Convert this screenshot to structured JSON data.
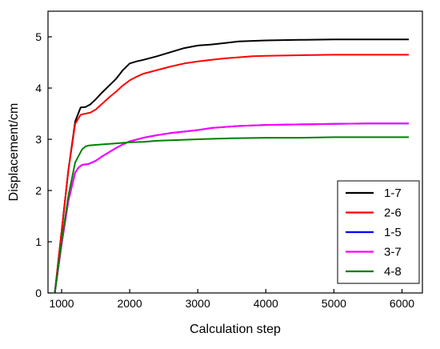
{
  "chart_data": {
    "type": "line",
    "xlabel": "Calculation step",
    "ylabel": "Displacement/cm",
    "xlim": [
      800,
      6300
    ],
    "ylim": [
      0,
      5.5
    ],
    "xticks": [
      1000,
      2000,
      3000,
      4000,
      5000,
      6000
    ],
    "xtick_labels": [
      "1000",
      "2000",
      "3000",
      "4000",
      "5000",
      "6000"
    ],
    "yticks": [
      0,
      1,
      2,
      3,
      4,
      5
    ],
    "ytick_labels": [
      "0",
      "1",
      "2",
      "3",
      "4",
      "5"
    ],
    "grid": false,
    "legend_position": "bottom-right",
    "series": [
      {
        "name": "1-7",
        "color": "#000000",
        "x": [
          900,
          1000,
          1100,
          1200,
          1280,
          1350,
          1420,
          1500,
          1600,
          1700,
          1800,
          1900,
          2000,
          2100,
          2200,
          2400,
          2600,
          2800,
          3000,
          3200,
          3400,
          3600,
          3800,
          4000,
          4500,
          5000,
          5500,
          6100
        ],
        "y": [
          0.0,
          1.2,
          2.4,
          3.35,
          3.62,
          3.63,
          3.68,
          3.78,
          3.92,
          4.05,
          4.18,
          4.35,
          4.48,
          4.52,
          4.55,
          4.62,
          4.7,
          4.78,
          4.83,
          4.85,
          4.88,
          4.91,
          4.92,
          4.93,
          4.94,
          4.95,
          4.95,
          4.95
        ]
      },
      {
        "name": "2-6",
        "color": "#ff0000",
        "x": [
          900,
          1000,
          1100,
          1200,
          1280,
          1350,
          1420,
          1500,
          1600,
          1700,
          1800,
          1900,
          2000,
          2100,
          2200,
          2400,
          2600,
          2800,
          3000,
          3200,
          3400,
          3600,
          3800,
          4000,
          4500,
          5000,
          5500,
          6100
        ],
        "y": [
          0.0,
          1.2,
          2.4,
          3.3,
          3.48,
          3.5,
          3.52,
          3.58,
          3.7,
          3.82,
          3.93,
          4.05,
          4.15,
          4.22,
          4.28,
          4.35,
          4.42,
          4.48,
          4.52,
          4.55,
          4.58,
          4.6,
          4.62,
          4.63,
          4.64,
          4.65,
          4.65,
          4.65
        ]
      },
      {
        "name": "1-5",
        "color": "#0000ff",
        "x": [
          900,
          1000,
          1100,
          1200,
          1250,
          1300,
          1400,
          1500,
          1600,
          1700,
          1800,
          1900,
          2000,
          2200,
          2400,
          2600,
          2800,
          3000,
          3200,
          3400,
          3600,
          3800,
          4000,
          4500,
          5000,
          5500,
          6100
        ],
        "y": [
          0.0,
          0.95,
          1.8,
          2.35,
          2.45,
          2.5,
          2.52,
          2.58,
          2.67,
          2.75,
          2.83,
          2.9,
          2.96,
          3.03,
          3.08,
          3.12,
          3.15,
          3.18,
          3.22,
          3.24,
          3.26,
          3.27,
          3.28,
          3.29,
          3.3,
          3.31,
          3.31
        ]
      },
      {
        "name": "3-7",
        "color": "#ff00ff",
        "x": [
          900,
          1000,
          1100,
          1200,
          1250,
          1300,
          1400,
          1500,
          1600,
          1700,
          1800,
          1900,
          2000,
          2200,
          2400,
          2600,
          2800,
          3000,
          3200,
          3400,
          3600,
          3800,
          4000,
          4500,
          5000,
          5500,
          6100
        ],
        "y": [
          0.0,
          0.95,
          1.8,
          2.35,
          2.45,
          2.5,
          2.52,
          2.58,
          2.67,
          2.75,
          2.83,
          2.9,
          2.96,
          3.03,
          3.08,
          3.12,
          3.15,
          3.18,
          3.22,
          3.24,
          3.26,
          3.27,
          3.28,
          3.29,
          3.3,
          3.31,
          3.31
        ]
      },
      {
        "name": "4-8",
        "color": "#008000",
        "x": [
          900,
          1000,
          1100,
          1200,
          1300,
          1350,
          1400,
          1500,
          1600,
          1700,
          1800,
          2000,
          2200,
          2400,
          2600,
          2800,
          3000,
          3500,
          4000,
          4500,
          5000,
          5500,
          6100
        ],
        "y": [
          0.0,
          1.0,
          1.9,
          2.55,
          2.8,
          2.86,
          2.88,
          2.89,
          2.9,
          2.91,
          2.92,
          2.94,
          2.95,
          2.97,
          2.98,
          2.99,
          3.0,
          3.02,
          3.03,
          3.03,
          3.04,
          3.04,
          3.04
        ]
      }
    ]
  }
}
